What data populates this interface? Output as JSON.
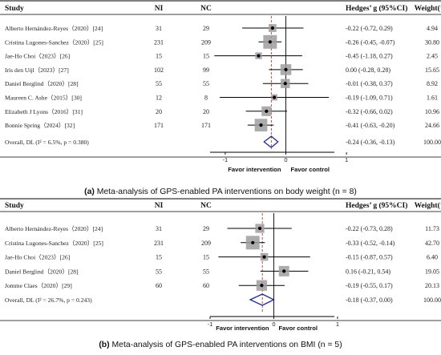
{
  "panels": [
    {
      "headers": {
        "study": "Study",
        "ni": "NI",
        "nc": "NC",
        "es": "Hedges’ g (95%CI)",
        "weight": "Weight(%)"
      },
      "rows": [
        {
          "study": "Alberto Hernández-Reyes（2020）[24]",
          "ni": "31",
          "nc": "29",
          "es": "-0.22 (-0.72, 0.29)",
          "weight": "4.94"
        },
        {
          "study": "Cristina Lugones-Sanchez（2020）[25]",
          "ni": "231",
          "nc": "209",
          "es": "-0.26 (-0.45, -0.07)",
          "weight": "30.80"
        },
        {
          "study": "Jae-Ho Choi（2023）[26]",
          "ni": "15",
          "nc": "15",
          "es": "-0.45 (-1.18, 0.27)",
          "weight": "2.45"
        },
        {
          "study": "Iris den Uijl（2023）[27]",
          "ni": "102",
          "nc": "99",
          "es": "0.00 (-0.28, 0.28)",
          "weight": "15.65"
        },
        {
          "study": "Daniel Berglind（2020）[28]",
          "ni": "55",
          "nc": "55",
          "es": "-0.01 (-0.38, 0.37)",
          "weight": "8.92"
        },
        {
          "study": "Maureen C. Ashe（2015）[30]",
          "ni": "12",
          "nc": "8",
          "es": "-0.19 (-1.09, 0.71)",
          "weight": "1.61"
        },
        {
          "study": "Elizabeth J Lyons（2016）[31]",
          "ni": "20",
          "nc": "20",
          "es": "-0.32 (-0.66, 0.02)",
          "weight": "10.96"
        },
        {
          "study": "Bonnie Spring（2024）[32]",
          "ni": "171",
          "nc": "171",
          "es": "-0.41 (-0.63, -0.20)",
          "weight": "24.66"
        }
      ],
      "overall": {
        "label": "Overall, DL (I² = 6.5%, p = 0.380)",
        "es": "-0.24 (-0.36, -0.13)",
        "weight": "100.00"
      },
      "favor_left": "Favor intervention",
      "favor_right": "Favor control",
      "caption": {
        "prefix": "(a)",
        "text": " Meta-analysis of GPS-enabled PA interventions on body weight (n = 8)"
      }
    },
    {
      "headers": {
        "study": "Study",
        "ni": "NI",
        "nc": "NC",
        "es": "Hedges’ g (95%CI)",
        "weight": "Weight(%)"
      },
      "rows": [
        {
          "study": "Alberto Hernández-Reyes（2020）[24]",
          "ni": "31",
          "nc": "29",
          "es": "-0.22 (-0.73, 0.28)",
          "weight": "11.73"
        },
        {
          "study": "Cristina Lugones-Sanchez（2020）[25]",
          "ni": "231",
          "nc": "209",
          "es": "-0.33 (-0.52, -0.14)",
          "weight": "42.70"
        },
        {
          "study": "Jae-Ho Choi（2023）[26]",
          "ni": "15",
          "nc": "15",
          "es": "-0.15 (-0.87, 0.57)",
          "weight": "6.40"
        },
        {
          "study": "Daniel Berglind（2020）[28]",
          "ni": "55",
          "nc": "55",
          "es": "0.16 (-0.21, 0.54)",
          "weight": "19.05"
        },
        {
          "study": "Jomme Claes（2020）[29]",
          "ni": "60",
          "nc": "60",
          "es": "-0.19 (-0.55, 0.17)",
          "weight": "20.13"
        }
      ],
      "overall": {
        "label": "Overall, DL (I² = 26.7%, p = 0.243)",
        "es": "-0.18 (-0.37, 0.00)",
        "weight": "100.00"
      },
      "favor_left": "Favor intervention",
      "favor_right": "Favor control",
      "caption": {
        "prefix": "(b)",
        "text": " Meta-analysis of GPS-enabled PA interventions on BMI (n = 5)"
      }
    }
  ],
  "chart_data": [
    {
      "type": "forest",
      "xticks": [
        -1,
        0,
        1
      ],
      "xlim": [
        -1.25,
        0.8
      ],
      "null_line": 0,
      "colors": {
        "line": "#000000",
        "box": "#9e9e9e",
        "diamond": "#1f2aa8",
        "dashed": "#c0392b"
      },
      "studies": [
        {
          "name": "Alberto Hernández-Reyes（2020）[24]",
          "g": -0.22,
          "lo": -0.72,
          "hi": 0.29,
          "weight": 4.94
        },
        {
          "name": "Cristina Lugones-Sanchez（2020）[25]",
          "g": -0.26,
          "lo": -0.45,
          "hi": -0.07,
          "weight": 30.8
        },
        {
          "name": "Jae-Ho Choi（2023）[26]",
          "g": -0.45,
          "lo": -1.18,
          "hi": 0.27,
          "weight": 2.45
        },
        {
          "name": "Iris den Uijl（2023）[27]",
          "g": 0.0,
          "lo": -0.28,
          "hi": 0.28,
          "weight": 15.65
        },
        {
          "name": "Daniel Berglind（2020）[28]",
          "g": -0.01,
          "lo": -0.38,
          "hi": 0.37,
          "weight": 8.92
        },
        {
          "name": "Maureen C. Ashe（2015）[30]",
          "g": -0.19,
          "lo": -1.09,
          "hi": 0.71,
          "weight": 1.61
        },
        {
          "name": "Elizabeth J Lyons（2016）[31]",
          "g": -0.32,
          "lo": -0.66,
          "hi": 0.02,
          "weight": 10.96
        },
        {
          "name": "Bonnie Spring（2024）[32]",
          "g": -0.41,
          "lo": -0.63,
          "hi": -0.2,
          "weight": 24.66
        }
      ],
      "overall": {
        "g": -0.24,
        "lo": -0.36,
        "hi": -0.13
      }
    },
    {
      "type": "forest",
      "xticks": [
        -1,
        0,
        1
      ],
      "xlim": [
        -1.0,
        0.95
      ],
      "null_line": 0,
      "colors": {
        "line": "#000000",
        "box": "#9e9e9e",
        "diamond": "#1f2aa8",
        "dashed": "#c0392b"
      },
      "studies": [
        {
          "name": "Alberto Hernández-Reyes（2020）[24]",
          "g": -0.22,
          "lo": -0.73,
          "hi": 0.28,
          "weight": 11.73
        },
        {
          "name": "Cristina Lugones-Sanchez（2020）[25]",
          "g": -0.33,
          "lo": -0.52,
          "hi": -0.14,
          "weight": 42.7
        },
        {
          "name": "Jae-Ho Choi（2023）[26]",
          "g": -0.15,
          "lo": -0.87,
          "hi": 0.57,
          "weight": 6.4
        },
        {
          "name": "Daniel Berglind（2020）[28]",
          "g": 0.16,
          "lo": -0.21,
          "hi": 0.54,
          "weight": 19.05
        },
        {
          "name": "Jomme Claes（2020）[29]",
          "g": -0.19,
          "lo": -0.55,
          "hi": 0.17,
          "weight": 20.13
        }
      ],
      "overall": {
        "g": -0.18,
        "lo": -0.37,
        "hi": 0.0
      }
    }
  ]
}
